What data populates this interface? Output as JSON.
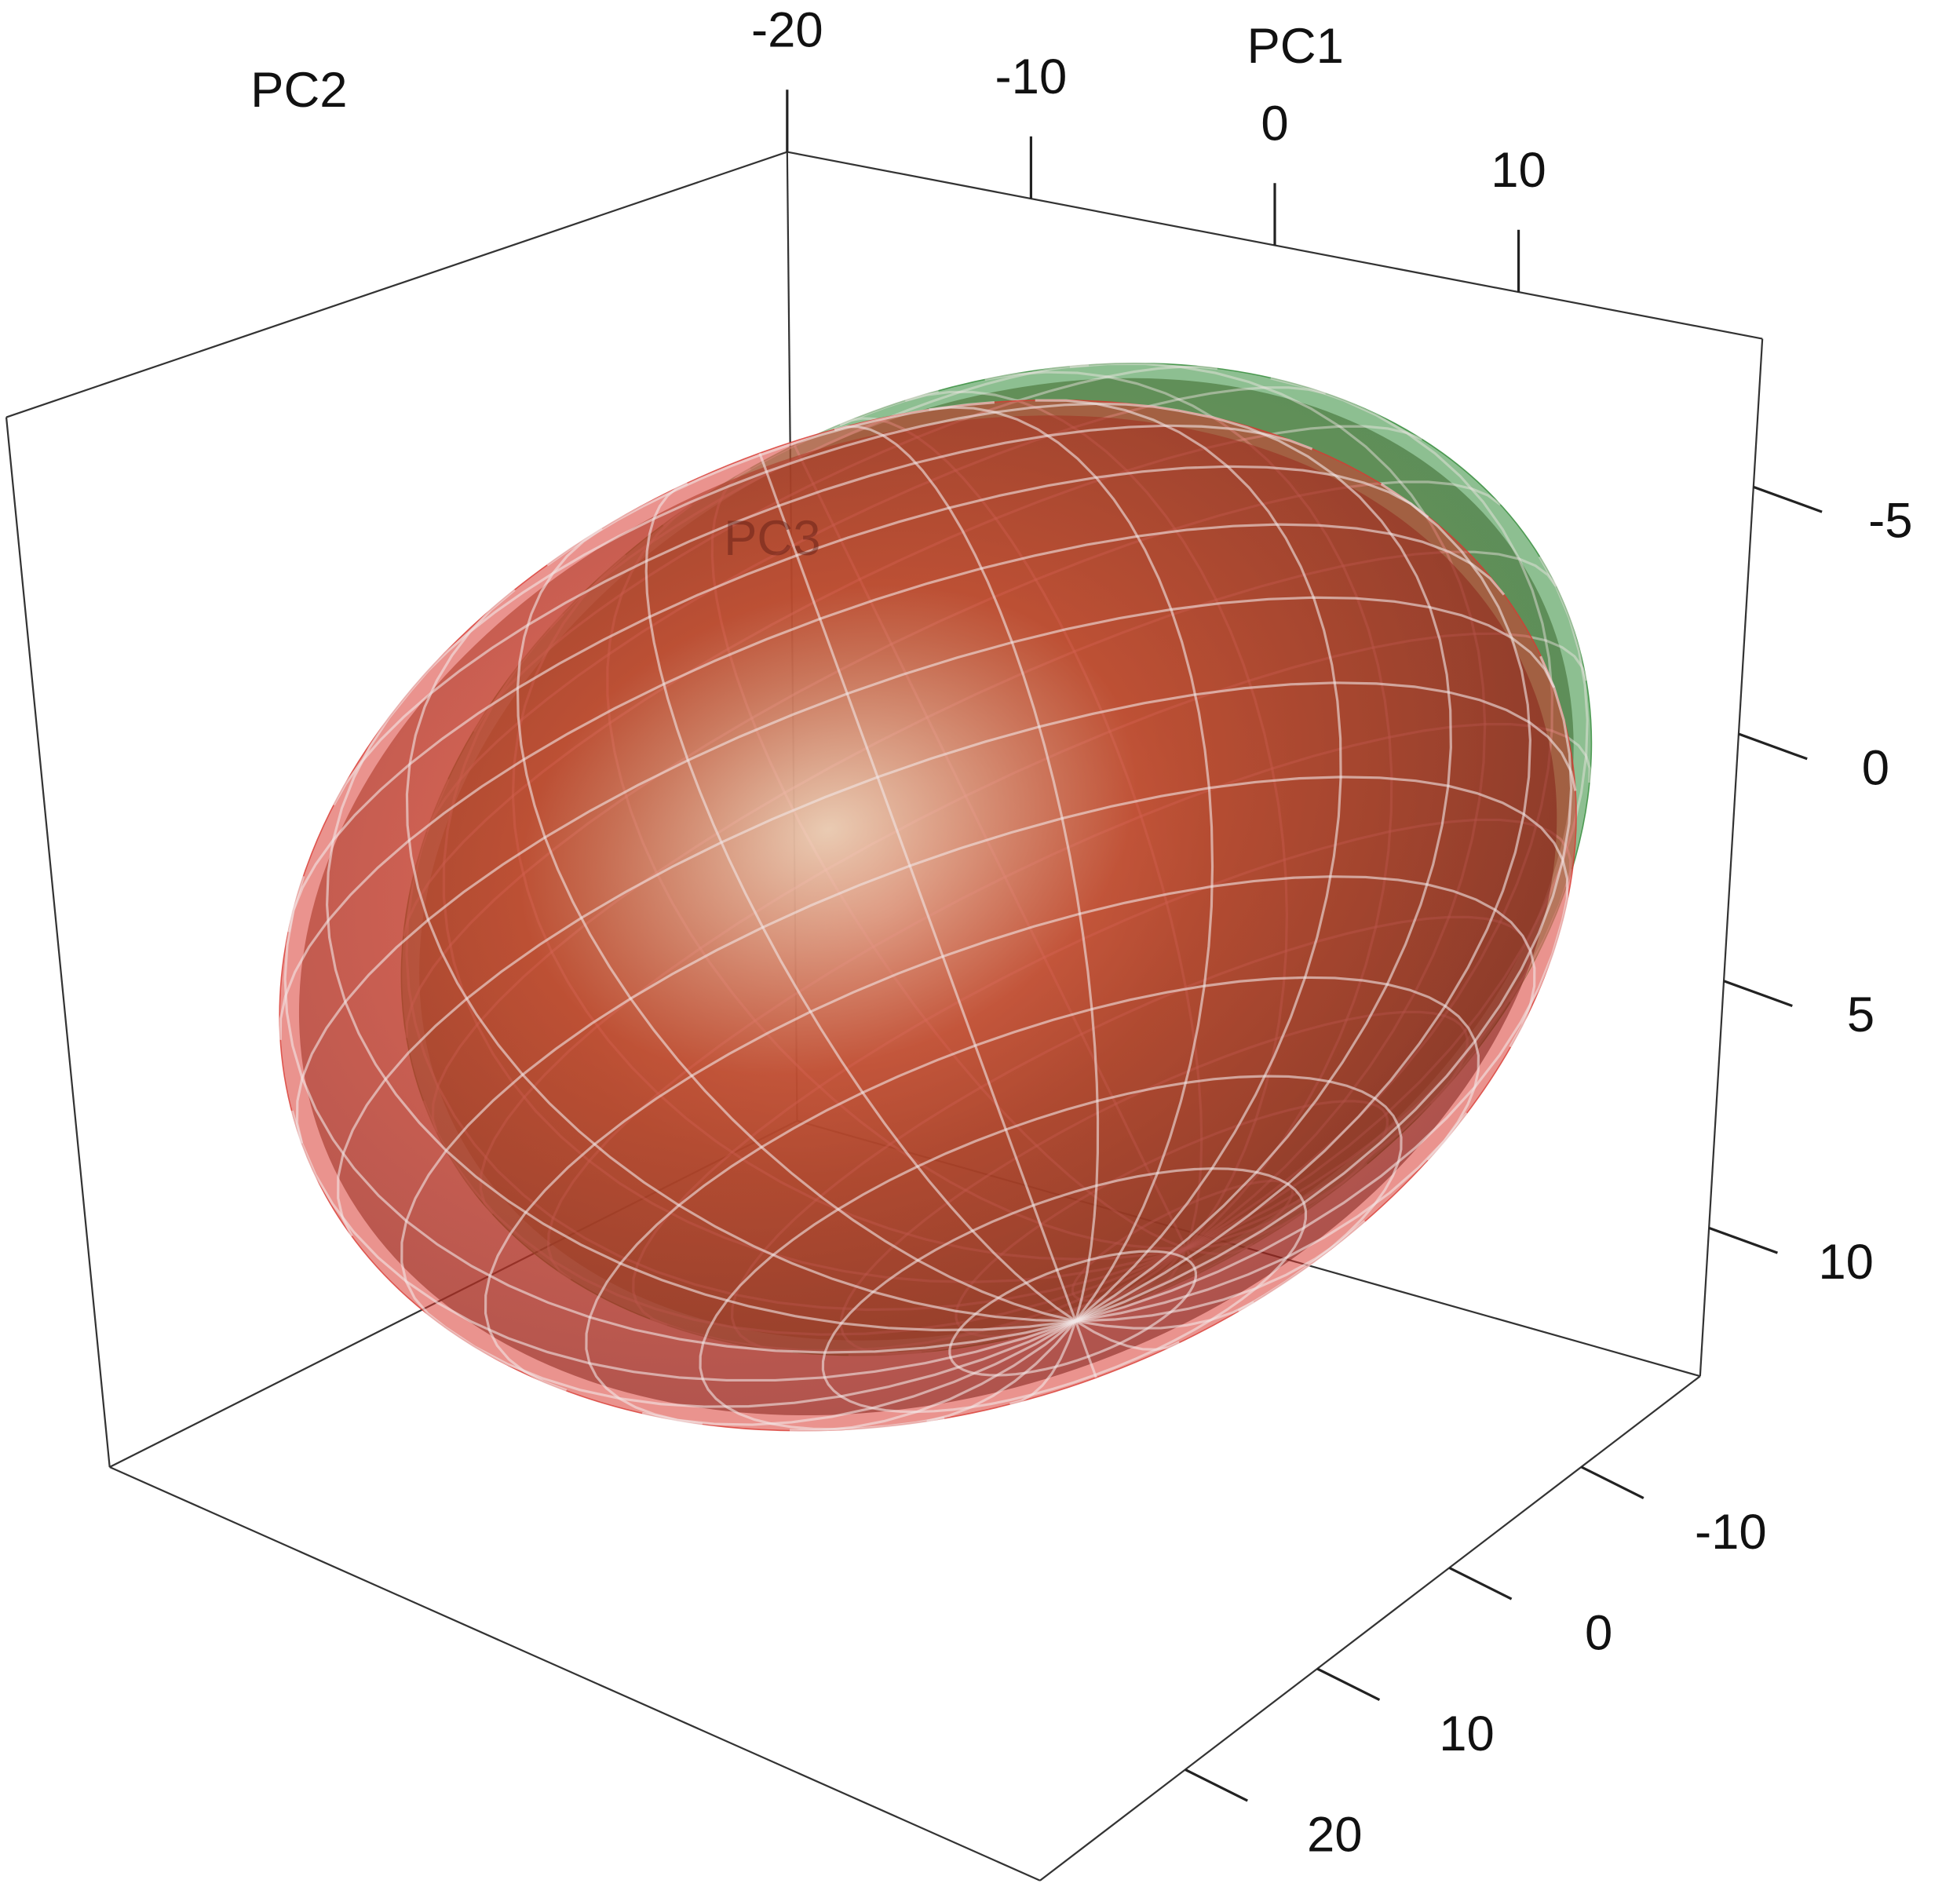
{
  "chart_data": {
    "type": "ellipsoid3d",
    "axes": [
      {
        "label": "PC1",
        "lim": [
          -20,
          20
        ],
        "ticks": [
          -20,
          -10,
          0,
          10
        ]
      },
      {
        "label": "PC2",
        "lim": [
          -19,
          31
        ],
        "ticks": [
          -10,
          0,
          10,
          20
        ]
      },
      {
        "label": "PC3",
        "lim": [
          -8,
          13
        ],
        "ticks": [
          -5,
          0,
          5,
          10
        ]
      }
    ],
    "ellipsoids": [
      {
        "color": "#d83a32"
      },
      {
        "color": "#2f8a36"
      }
    ]
  }
}
